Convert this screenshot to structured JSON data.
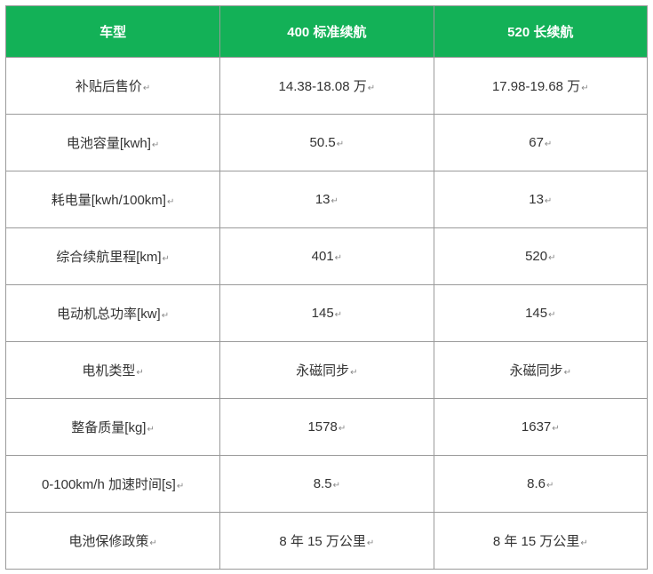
{
  "table": {
    "header_bg": "#13b157",
    "header_color": "#ffffff",
    "border_color": "#9a9a9a",
    "columns": [
      {
        "label": "车型"
      },
      {
        "label": "400 标准续航"
      },
      {
        "label": "520 长续航"
      }
    ],
    "rows": [
      {
        "label": "补贴后售价",
        "v1": "14.38-18.08 万",
        "v2": "17.98-19.68 万"
      },
      {
        "label": "电池容量[kwh]",
        "v1": "50.5",
        "v2": "67"
      },
      {
        "label": "耗电量[kwh/100km]",
        "v1": "13",
        "v2": "13"
      },
      {
        "label": "综合续航里程[km]",
        "v1": "401",
        "v2": "520"
      },
      {
        "label": "电动机总功率[kw]",
        "v1": "145",
        "v2": "145"
      },
      {
        "label": "电机类型",
        "v1": "永磁同步",
        "v2": "永磁同步"
      },
      {
        "label": "整备质量[kg]",
        "v1": "1578",
        "v2": "1637"
      },
      {
        "label": "0-100km/h 加速时间[s]",
        "v1": "8.5",
        "v2": "8.6"
      },
      {
        "label": "电池保修政策",
        "v1": "8 年 15 万公里",
        "v2": "8 年 15 万公里"
      }
    ],
    "return_mark": "↵"
  }
}
